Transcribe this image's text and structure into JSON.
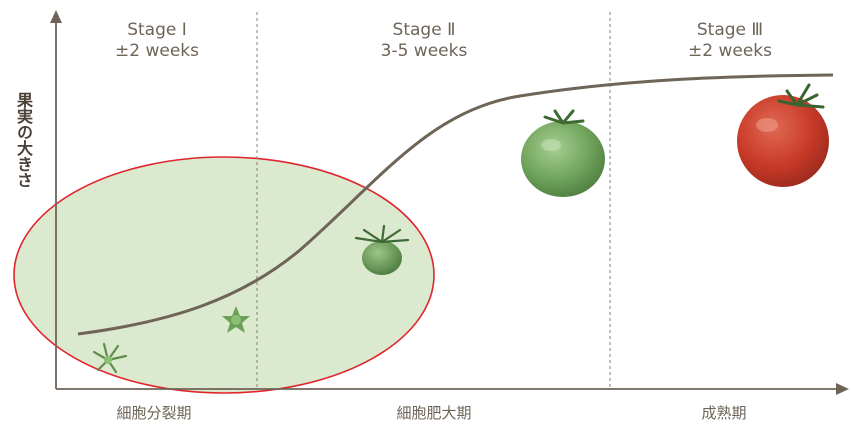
{
  "stages": [
    {
      "title": "Stage Ⅰ",
      "duration": "±2 weeks"
    },
    {
      "title": "Stage Ⅱ",
      "duration": "3-5 weeks"
    },
    {
      "title": "Stage Ⅲ",
      "duration": "±2 weeks"
    }
  ],
  "y_axis_label": "果実の大きさ",
  "phases": [
    "細胞分裂期",
    "細胞肥大期",
    "成熟期"
  ],
  "colors": {
    "axis": "#6e6458",
    "curve": "#6e6458",
    "divider": "#8a8075",
    "ellipse_stroke": "#e0262c",
    "ellipse_fill": "#dbe9cf",
    "tomato_red": "#d2412e",
    "tomato_green": "#7fb06a"
  }
}
